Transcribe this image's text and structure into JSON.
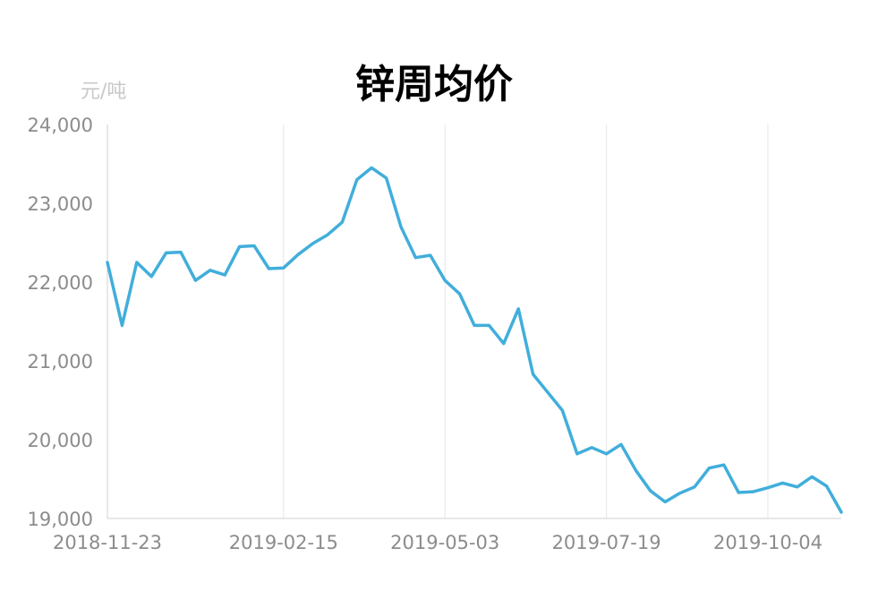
{
  "chart_data": {
    "type": "line",
    "title": "锌周均价",
    "unit_label": "元/吨",
    "xlabel": "",
    "ylabel": "",
    "ylim": [
      19000,
      24000
    ],
    "y_ticks": [
      "24,000",
      "23,000",
      "22,000",
      "21,000",
      "20,000",
      "19,000"
    ],
    "y_tick_values": [
      24000,
      23000,
      22000,
      21000,
      20000,
      19000
    ],
    "x_tick_labels": [
      "2018-11-23",
      "2019-02-15",
      "2019-05-03",
      "2019-07-19",
      "2019-10-04"
    ],
    "x_tick_indices": [
      0,
      12,
      23,
      34,
      45
    ],
    "grid_vertical": true,
    "line_color": "#41aedb",
    "series": [
      {
        "values": [
          22250,
          21450,
          22250,
          22070,
          22370,
          22380,
          22020,
          22150,
          22090,
          22450,
          22460,
          22170,
          22180,
          22350,
          22490,
          22600,
          22760,
          23300,
          23450,
          23320,
          22700,
          22310,
          22340,
          22020,
          21850,
          21450,
          21450,
          21220,
          21660,
          20830,
          20600,
          20370,
          19820,
          19900,
          19820,
          19940,
          19610,
          19350,
          19210,
          19320,
          19400,
          19640,
          19680,
          19330,
          19340,
          19390,
          19450,
          19400,
          19530,
          19410,
          19080
        ]
      }
    ]
  }
}
